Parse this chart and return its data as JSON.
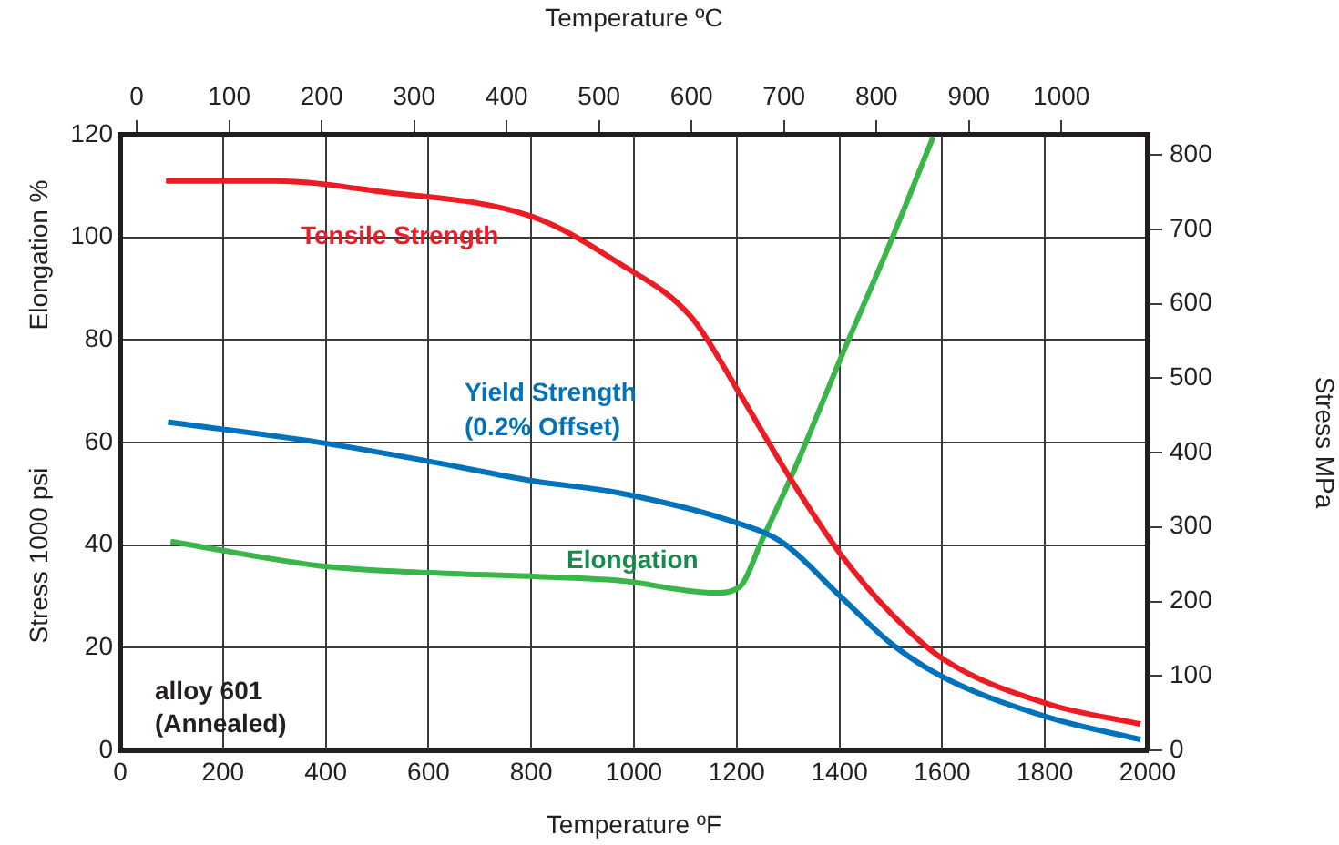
{
  "chart_data": {
    "type": "line",
    "xlabel": "Temperature ºF",
    "x2label": "Temperature ºC",
    "ylabel": "Stress 1000 psi",
    "y2label": "Stress MPa",
    "annotations": [
      "Elongation %",
      "alloy 601",
      "(Annealed)"
    ],
    "xlim": [
      0,
      2000
    ],
    "xticks": [
      0,
      200,
      400,
      600,
      800,
      1000,
      1200,
      1400,
      1600,
      1800,
      2000
    ],
    "x2lim": [
      -17.8,
      1093.3
    ],
    "x2ticks": [
      0,
      100,
      200,
      300,
      400,
      500,
      600,
      700,
      800,
      900,
      1000
    ],
    "ylim": [
      0,
      120
    ],
    "yticks": [
      0,
      20,
      40,
      60,
      80,
      100,
      120
    ],
    "y2lim": [
      0,
      827
    ],
    "y2ticks": [
      0,
      100,
      200,
      300,
      400,
      500,
      600,
      700,
      800
    ],
    "grid": true,
    "legend": false,
    "marker": "none",
    "line_style": "solid",
    "series": [
      {
        "name": "Tensile Strength",
        "color": "#ed1c24",
        "x": [
          89,
          300,
          500,
          803,
          970,
          1112,
          1203,
          1300,
          1401,
          1502,
          1603,
          1804,
          1986
        ],
        "values": [
          111,
          111,
          109,
          104,
          95,
          84.4,
          70,
          53.7,
          38.4,
          26.5,
          17.7,
          9.1,
          5.1
        ]
      },
      {
        "name": "Yield Strength (0.2% Offset)",
        "color": "#0072bc",
        "x": [
          93,
          402,
          603,
          804,
          970,
          1201,
          1289,
          1401,
          1502,
          1603,
          1804,
          1986
        ],
        "values": [
          64,
          59.8,
          56.3,
          52.5,
          50.2,
          44.3,
          40.5,
          30.1,
          20.7,
          14.2,
          6.5,
          2.1
        ]
      },
      {
        "name": "Elongation",
        "color": "#39b54a",
        "x": [
          98,
          402,
          603,
          804,
          970,
          1159,
          1206,
          1248,
          1313,
          1401,
          1502,
          1582
        ],
        "values": [
          40.7,
          35.8,
          34.6,
          33.9,
          33.1,
          30.7,
          31.9,
          40.7,
          54.9,
          76.1,
          99.7,
          119.5
        ]
      }
    ]
  }
}
